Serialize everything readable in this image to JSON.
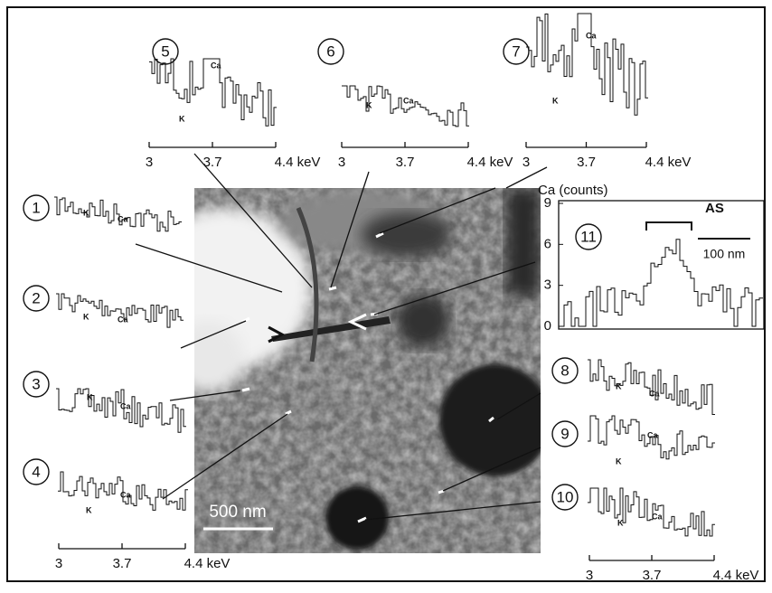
{
  "panels": [
    {
      "label": "1",
      "peaks": [
        "K",
        "Ca"
      ]
    },
    {
      "label": "2",
      "peaks": [
        "K",
        "Ca"
      ]
    },
    {
      "label": "3",
      "peaks": [
        "K",
        "Ca"
      ]
    },
    {
      "label": "4",
      "peaks": [
        "K",
        "Ca"
      ],
      "axis_ticks": [
        "3",
        "3.7",
        "4.4 keV"
      ]
    },
    {
      "label": "5",
      "peaks": [
        "K",
        "Ca"
      ],
      "axis_ticks": [
        "3",
        "3.7",
        "4.4 keV"
      ]
    },
    {
      "label": "6",
      "peaks": [
        "K",
        "Ca"
      ],
      "axis_ticks": [
        "3",
        "3.7",
        "4.4 keV"
      ]
    },
    {
      "label": "7",
      "peaks": [
        "K",
        "Ca"
      ],
      "axis_ticks": [
        "3",
        "3.7",
        "4.4 keV"
      ]
    },
    {
      "label": "8",
      "peaks": [
        "K",
        "Ca"
      ]
    },
    {
      "label": "9",
      "peaks": [
        "K",
        "Ca"
      ]
    },
    {
      "label": "10",
      "peaks": [
        "K",
        "Ca"
      ],
      "axis_ticks": [
        "3",
        "3.7",
        "4.4 keV"
      ]
    }
  ],
  "inset": {
    "label": "11",
    "ylabel": "Ca (counts)",
    "yticks": [
      9,
      6,
      3,
      0
    ],
    "bracket": "AS",
    "scale_bar": "100 nm"
  },
  "micrograph": {
    "scale_bar": "500 nm"
  }
}
